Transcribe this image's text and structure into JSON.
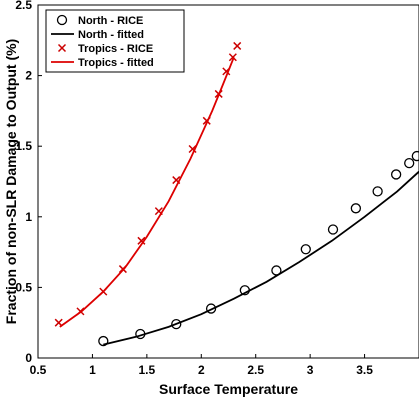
{
  "chart_data": {
    "type": "scatter",
    "xlabel": "Surface Temperature",
    "ylabel": "Fraction of non-SLR Damage to Output (%)",
    "xlim": [
      0.5,
      4.0
    ],
    "ylim": [
      0,
      2.5
    ],
    "xticks": [
      0.5,
      1,
      1.5,
      2,
      2.5,
      3,
      3.5
    ],
    "yticks": [
      0,
      0.5,
      1,
      1.5,
      2,
      2.5
    ],
    "grid": false,
    "legend_position": "top-left",
    "series": [
      {
        "name": "North - RICE",
        "kind": "markers",
        "marker": "circle",
        "color": "#000000",
        "x": [
          1.1,
          1.44,
          1.77,
          2.09,
          2.4,
          2.69,
          2.96,
          3.21,
          3.42,
          3.62,
          3.79,
          3.91,
          3.98
        ],
        "y": [
          0.12,
          0.17,
          0.24,
          0.35,
          0.48,
          0.62,
          0.77,
          0.91,
          1.06,
          1.18,
          1.3,
          1.38,
          1.43
        ]
      },
      {
        "name": "North - fitted",
        "kind": "line",
        "color": "#000000",
        "x": [
          1.1,
          1.4,
          1.7,
          2.0,
          2.3,
          2.6,
          2.9,
          3.2,
          3.5,
          3.8,
          4.0
        ],
        "y": [
          0.095,
          0.15,
          0.22,
          0.31,
          0.42,
          0.54,
          0.68,
          0.83,
          1.0,
          1.18,
          1.32
        ]
      },
      {
        "name": "Tropics - RICE",
        "kind": "markers",
        "marker": "x",
        "color": "#cc0000",
        "x": [
          0.69,
          0.89,
          1.1,
          1.28,
          1.45,
          1.61,
          1.77,
          1.92,
          2.05,
          2.16,
          2.23,
          2.29,
          2.33
        ],
        "y": [
          0.25,
          0.33,
          0.47,
          0.63,
          0.83,
          1.04,
          1.26,
          1.48,
          1.68,
          1.87,
          2.03,
          2.13,
          2.21
        ]
      },
      {
        "name": "Tropics - fitted",
        "kind": "line",
        "color": "#dd0000",
        "x": [
          0.7,
          0.9,
          1.1,
          1.3,
          1.5,
          1.7,
          1.9,
          2.1,
          2.2,
          2.3
        ],
        "y": [
          0.22,
          0.33,
          0.47,
          0.64,
          0.86,
          1.11,
          1.41,
          1.75,
          1.94,
          2.13
        ]
      }
    ]
  }
}
